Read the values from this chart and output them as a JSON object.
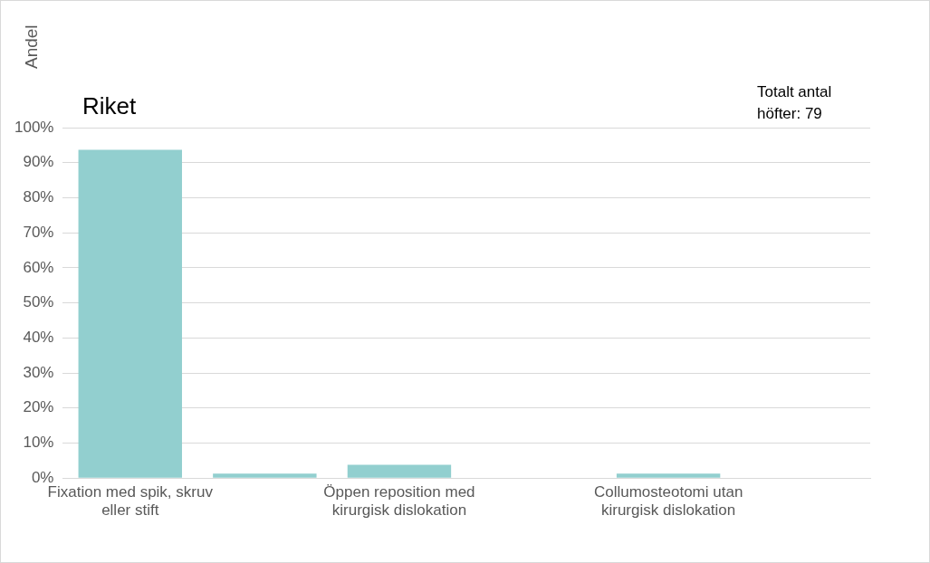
{
  "chart_data": {
    "type": "bar",
    "title": "Riket",
    "ylabel": "Andel",
    "categories": [
      "Fixation med spik, skruv eller stift",
      null,
      "Öppen reposition med kirurgisk dislokation",
      null,
      "Collumosteotomi utan kirurgisk dislokation",
      null
    ],
    "values": [
      93.7,
      1.3,
      3.8,
      0,
      1.3,
      0
    ],
    "color": "#92cfcf",
    "ylim": [
      0,
      100
    ],
    "yticks": [
      {
        "value": 0,
        "label": "0%"
      },
      {
        "value": 10,
        "label": "10%"
      },
      {
        "value": 20,
        "label": "20%"
      },
      {
        "value": 30,
        "label": "30%"
      },
      {
        "value": 40,
        "label": "40%"
      },
      {
        "value": 50,
        "label": "50%"
      },
      {
        "value": 60,
        "label": "60%"
      },
      {
        "value": 70,
        "label": "70%"
      },
      {
        "value": 80,
        "label": "80%"
      },
      {
        "value": 90,
        "label": "90%"
      },
      {
        "value": 100,
        "label": "100%"
      }
    ],
    "grid": "y",
    "legend": false,
    "annotations": [
      "Totalt antal höfter: 79"
    ]
  }
}
